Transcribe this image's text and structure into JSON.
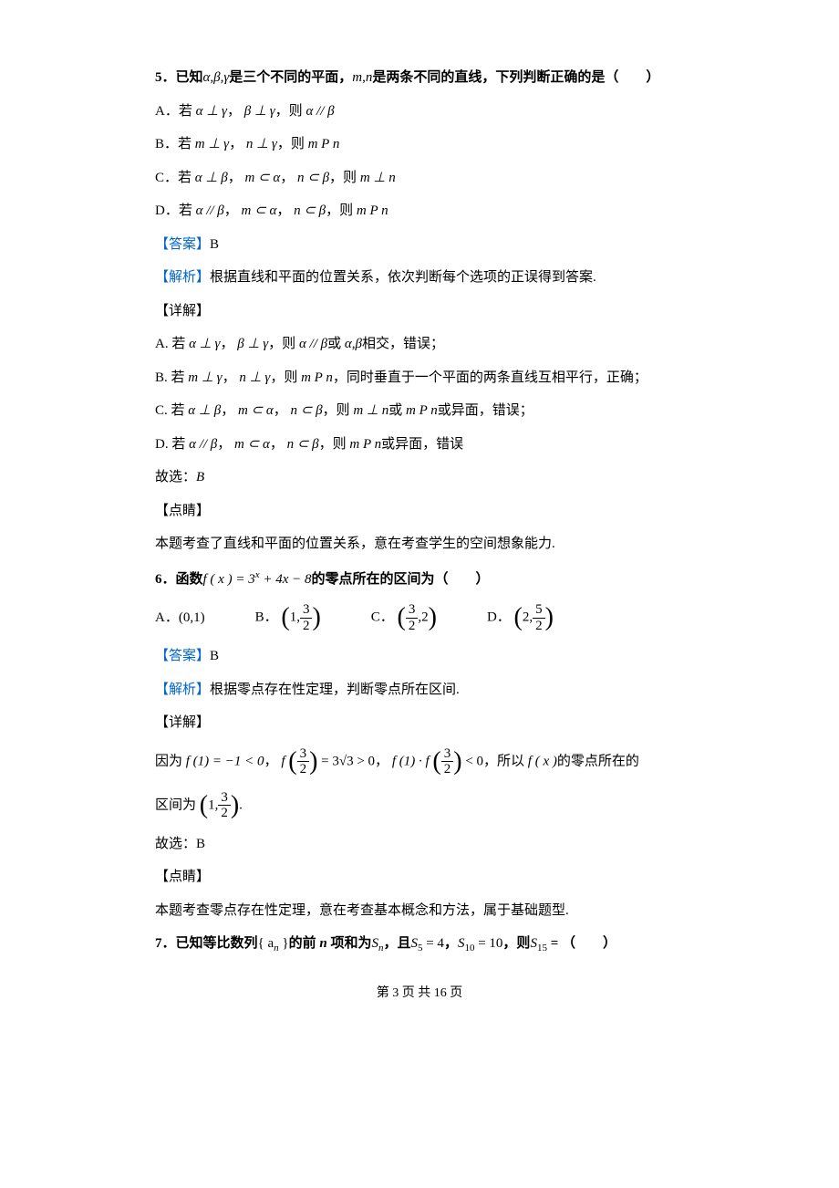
{
  "q5": {
    "stem_prefix": "5．已知",
    "stem_vars1": "α,β,γ",
    "stem_mid1": "是三个不同的平面，",
    "stem_vars2": "m,n",
    "stem_mid2": "是两条不同的直线，下列判断正确的是（　　）",
    "A_prefix": "A．若",
    "A_math1": "α ⊥ γ",
    "A_comma": "，",
    "A_math2": "β ⊥ γ",
    "A_then": "，则",
    "A_math3": "α // β",
    "B_prefix": "B．若",
    "B_math1": "m ⊥ γ",
    "B_math2": "n ⊥ γ",
    "B_math3": "m P n",
    "C_prefix": "C．若",
    "C_math1": "α ⊥ β",
    "C_math2": "m ⊂ α",
    "C_math3": "n ⊂ β",
    "C_math4": "m ⊥ n",
    "D_prefix": "D．若",
    "D_math1": "α // β",
    "D_math2": "m ⊂ α",
    "D_math3": "n ⊂ β",
    "D_math4": "m P n",
    "ans_label": "【答案】",
    "ans": "B",
    "jiexi_label": "【解析】",
    "jiexi": "根据直线和平面的位置关系，依次判断每个选项的正误得到答案.",
    "xj_label": "【详解】",
    "det_A_prefix": "A. 若",
    "det_A_m1": "α ⊥ γ",
    "det_A_m2": "β ⊥ γ",
    "det_A_then1": "α // β",
    "det_A_or": "或",
    "det_A_m3": "α,β",
    "det_A_tail": "相交，错误；",
    "det_B_prefix": "B. 若",
    "det_B_m1": "m ⊥ γ",
    "det_B_m2": "n ⊥ γ",
    "det_B_m3": "m P n",
    "det_B_tail": "，同时垂直于一个平面的两条直线互相平行，正确；",
    "det_C_prefix": "C. 若",
    "det_C_m1": "α ⊥ β",
    "det_C_m2": "m ⊂ α",
    "det_C_m3": "n ⊂ β",
    "det_C_m4": "m ⊥ n",
    "det_C_m5": "m P n",
    "det_C_tail": "或异面，错误；",
    "det_D_prefix": "D. 若",
    "det_D_m1": "α // β",
    "det_D_m2": "m ⊂ α",
    "det_D_m3": "n ⊂ β",
    "det_D_m4": "m P n",
    "det_D_tail": "或异面，错误",
    "select": "故选：",
    "select_ans": "B",
    "dj_label": "【点睛】",
    "dj": "本题考查了直线和平面的位置关系，意在考查学生的空间想象能力."
  },
  "q6": {
    "stem_prefix": "6．函数",
    "stem_fx": "f ( x ) = 3",
    "stem_exp": "x",
    "stem_mid": " + 4x − 8",
    "stem_tail": "的零点所在的区间为（　　）",
    "A_label": "A．",
    "A_val": "(0,1)",
    "B_label": "B．",
    "C_label": "C．",
    "D_label": "D．",
    "one": "1",
    "three": "3",
    "two": "2",
    "five": "5",
    "ans_label": "【答案】",
    "ans": "B",
    "jiexi_label": "【解析】",
    "jiexi": "根据零点存在性定理，判断零点所在区间.",
    "xj_label": "【详解】",
    "det_prefix": "因为",
    "det_f1": "f (1) = −1 < 0",
    "det_comma": "，",
    "det_f": "f",
    "det_eq2": "= 3√3 > 0",
    "det_f1dot": "f (1) ·",
    "det_lt0": "< 0",
    "det_so": "，所以",
    "det_fx": "f ( x )",
    "det_tail1": "的零点所在的",
    "det_tail2": "区间为",
    "det_period": ".",
    "select": "故选：B",
    "dj_label": "【点睛】",
    "dj": "本题考查零点存在性定理，意在考查基本概念和方法，属于基础题型."
  },
  "q7": {
    "stem_prefix": "7．已知等比数列",
    "stem_seq": "{ a",
    "stem_n": "n",
    "stem_seq2": " }",
    "stem_mid1": "的前",
    "stem_nbold": " n ",
    "stem_mid2": "项和为",
    "stem_Sn": "S",
    "stem_comma1": "，且",
    "stem_S5": "S",
    "stem_5": "5",
    "stem_eq4": " = 4",
    "stem_comma2": "，",
    "stem_S10": "S",
    "stem_10": "10",
    "stem_eq10": " = 10",
    "stem_then": "，则",
    "stem_S15": "S",
    "stem_15": "15",
    "stem_eq": " = （　　）"
  },
  "footer": "第 3 页 共 16 页",
  "then": "，则",
  "comma": "，",
  "or": "或"
}
